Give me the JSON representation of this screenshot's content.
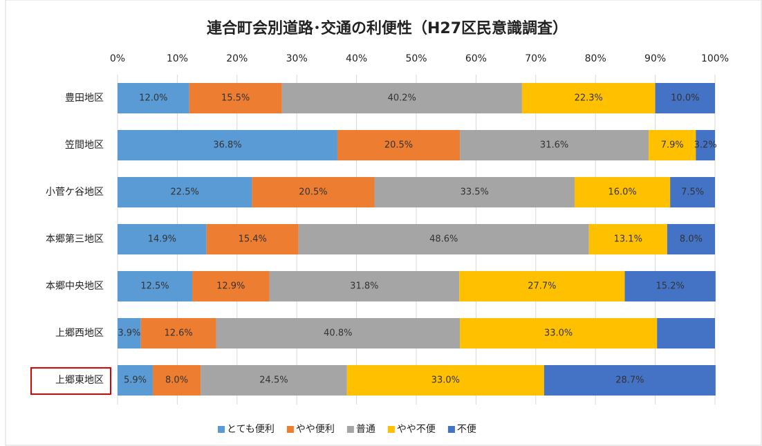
{
  "chart_data": {
    "type": "stacked-bar-horizontal",
    "title": "連合町会別道路･交通の利便性（H27区民意識調査）",
    "categories": [
      "豊田地区",
      "笠間地区",
      "小菅ケ谷地区",
      "本郷第三地区",
      "本郷中央地区",
      "上郷西地区",
      "上郷東地区"
    ],
    "series": [
      {
        "name": "とても便利",
        "color": "#5b9bd5",
        "values": [
          12.0,
          36.8,
          22.5,
          14.9,
          12.5,
          3.9,
          5.9
        ],
        "value_labels": [
          "12.0%",
          "36.8%",
          "22.5%",
          "14.9%",
          "12.5%",
          "3.9%",
          "5.9%"
        ]
      },
      {
        "name": "やや便利",
        "color": "#ed7d31",
        "values": [
          15.5,
          20.5,
          20.5,
          15.4,
          12.9,
          12.6,
          8.0
        ],
        "value_labels": [
          "15.5%",
          "20.5%",
          "20.5%",
          "15.4%",
          "12.9%",
          "12.6%",
          "8.0%"
        ]
      },
      {
        "name": "普通",
        "color": "#a5a5a5",
        "values": [
          40.2,
          31.6,
          33.5,
          48.6,
          31.8,
          40.8,
          24.5
        ],
        "value_labels": [
          "40.2%",
          "31.6%",
          "33.5%",
          "48.6%",
          "31.8%",
          "40.8%",
          "24.5%"
        ]
      },
      {
        "name": "やや不便",
        "color": "#ffc000",
        "values": [
          22.3,
          7.9,
          16.0,
          13.1,
          27.7,
          33.0,
          33.0
        ],
        "value_labels": [
          "22.3%",
          "7.9%",
          "16.0%",
          "13.1%",
          "27.7%",
          "33.0%",
          "33.0%"
        ]
      },
      {
        "name": "不便",
        "color": "#4472c4",
        "values": [
          10.0,
          3.2,
          7.5,
          8.0,
          15.2,
          9.7,
          28.7
        ],
        "value_labels": [
          "10.0%",
          "3.2%",
          "7.5%",
          "8.0%",
          "15.2%",
          null,
          "28.7%"
        ]
      }
    ],
    "xlim": [
      0,
      100
    ],
    "xticks": [
      {
        "value": 0,
        "label": "0%"
      },
      {
        "value": 10,
        "label": "10%"
      },
      {
        "value": 20,
        "label": "20%"
      },
      {
        "value": 30,
        "label": "30%"
      },
      {
        "value": 40,
        "label": "40%"
      },
      {
        "value": 50,
        "label": "50%"
      },
      {
        "value": 60,
        "label": "60%"
      },
      {
        "value": 70,
        "label": "70%"
      },
      {
        "value": 80,
        "label": "80%"
      },
      {
        "value": 90,
        "label": "90%"
      },
      {
        "value": 100,
        "label": "100%"
      }
    ],
    "grid": true,
    "legend": "bottom"
  }
}
